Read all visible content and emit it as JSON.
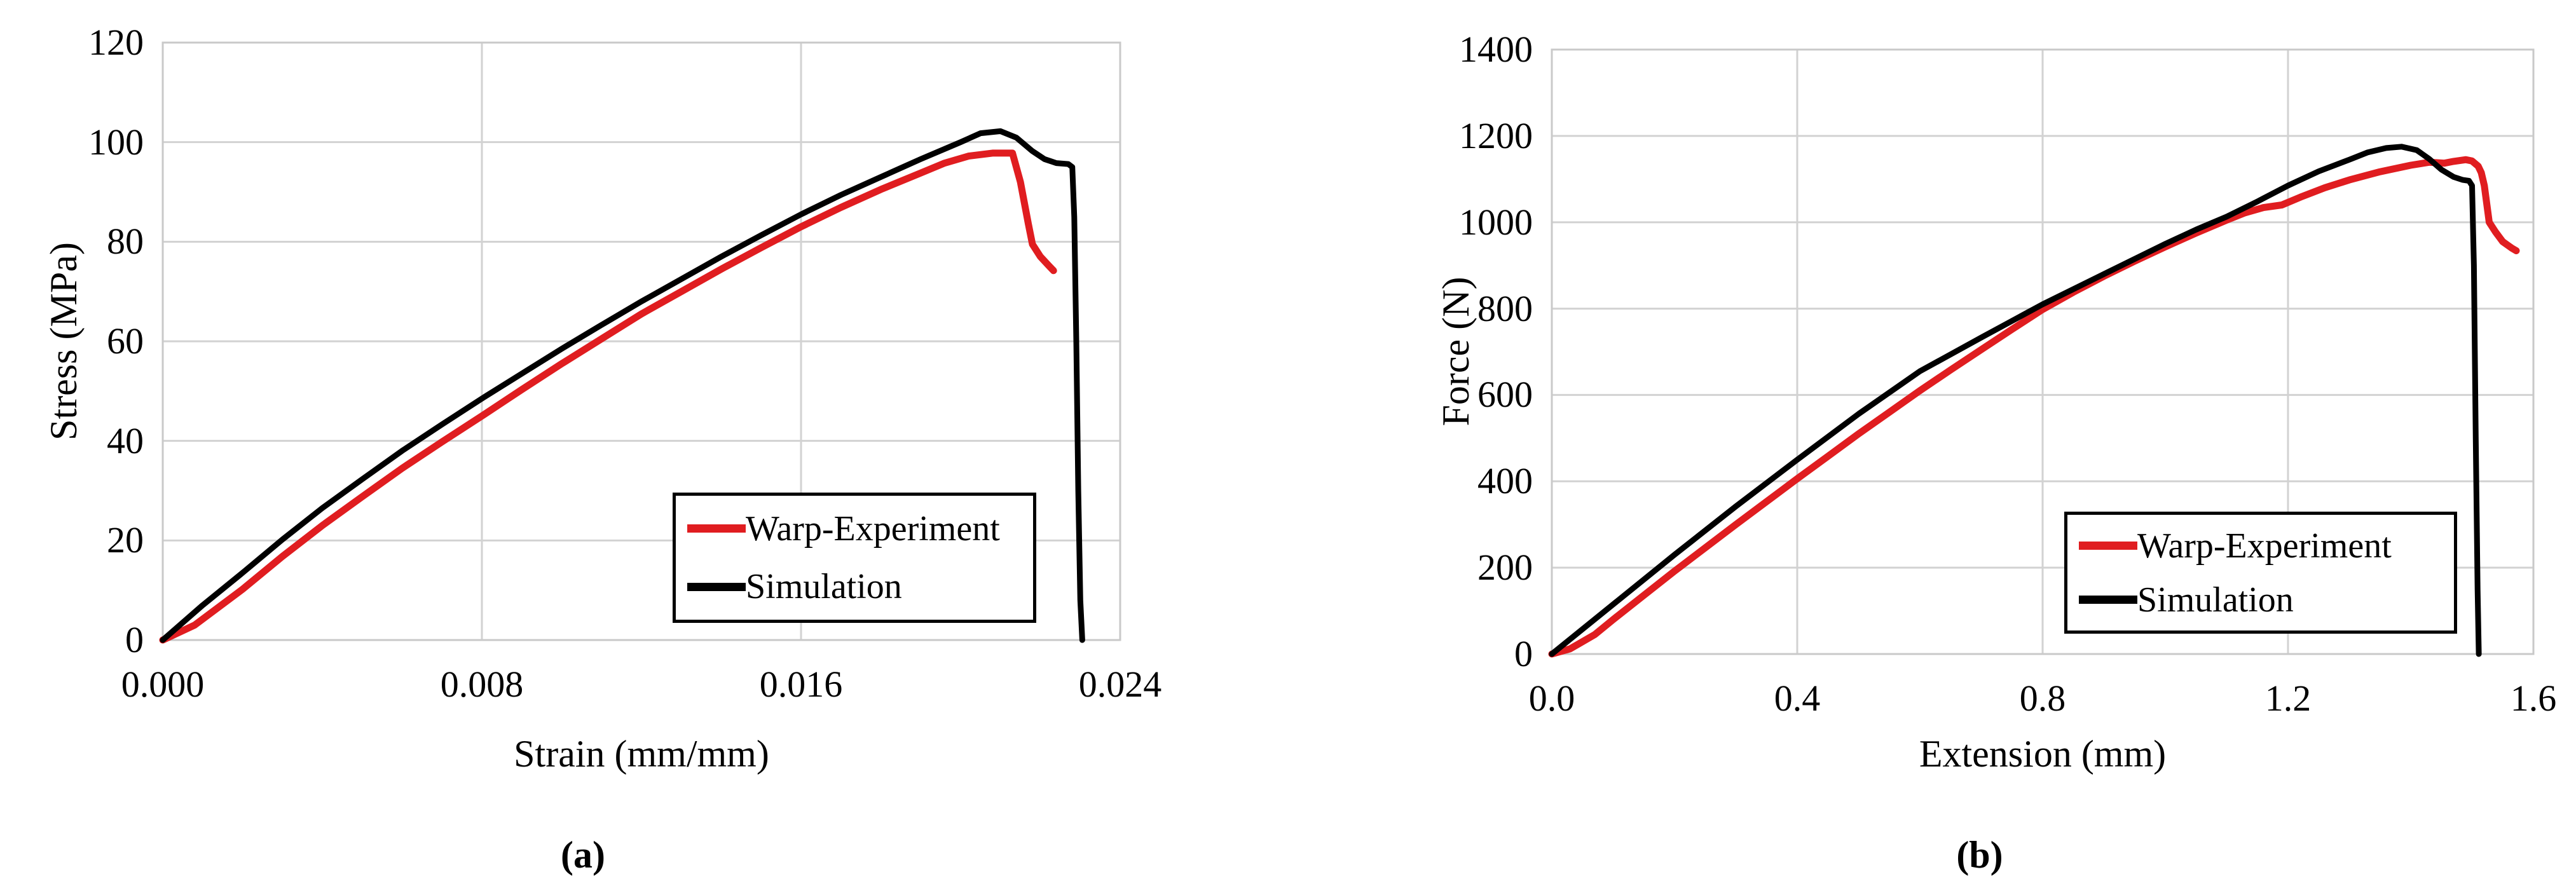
{
  "figure": {
    "background": "#ffffff",
    "text_color": "#000000"
  },
  "colors": {
    "experiment": "#e01d20",
    "simulation": "#000000",
    "grid": "#d2d2d2",
    "plot_border": "#c9c9c9",
    "legend_border": "#000000",
    "legend_background": "#ffffff"
  },
  "chart_data": [
    {
      "type": "line",
      "caption": "(a)",
      "xlabel": "Strain (mm/mm)",
      "ylabel": "Stress (MPa)",
      "xlim": [
        0,
        0.024
      ],
      "ylim": [
        0,
        120
      ],
      "grid": true,
      "legend_position": "inside-lower-right",
      "x_ticks": [
        {
          "v": 0,
          "label": "0.000"
        },
        {
          "v": 0.008,
          "label": "0.008"
        },
        {
          "v": 0.016,
          "label": "0.016"
        },
        {
          "v": 0.024,
          "label": "0.024"
        }
      ],
      "y_ticks": [
        {
          "v": 0,
          "label": "0"
        },
        {
          "v": 20,
          "label": "20"
        },
        {
          "v": 40,
          "label": "40"
        },
        {
          "v": 60,
          "label": "60"
        },
        {
          "v": 80,
          "label": "80"
        },
        {
          "v": 100,
          "label": "100"
        },
        {
          "v": 120,
          "label": "120"
        }
      ],
      "series": [
        {
          "name": "Warp-Experiment",
          "color_key": "experiment",
          "stroke_width": 11,
          "points": [
            [
              0,
              0
            ],
            [
              0.0008,
              3
            ],
            [
              0.002,
              10.2
            ],
            [
              0.003,
              16.8
            ],
            [
              0.004,
              23
            ],
            [
              0.005,
              28.8
            ],
            [
              0.006,
              34.5
            ],
            [
              0.007,
              39.8
            ],
            [
              0.008,
              45
            ],
            [
              0.009,
              50.3
            ],
            [
              0.01,
              55.5
            ],
            [
              0.011,
              60.5
            ],
            [
              0.012,
              65.5
            ],
            [
              0.013,
              70
            ],
            [
              0.014,
              74.5
            ],
            [
              0.015,
              78.8
            ],
            [
              0.016,
              83
            ],
            [
              0.017,
              86.9
            ],
            [
              0.018,
              90.5
            ],
            [
              0.019,
              93.8
            ],
            [
              0.0196,
              95.8
            ],
            [
              0.0202,
              97.2
            ],
            [
              0.0208,
              97.8
            ],
            [
              0.0213,
              97.8
            ],
            [
              0.0215,
              92
            ],
            [
              0.0217,
              83.5
            ],
            [
              0.0218,
              79.5
            ],
            [
              0.022,
              77
            ],
            [
              0.0222,
              75.3
            ],
            [
              0.02233,
              74.2
            ]
          ]
        },
        {
          "name": "Simulation",
          "color_key": "simulation",
          "stroke_width": 9,
          "points": [
            [
              0,
              0
            ],
            [
              0.001,
              7
            ],
            [
              0.002,
              13.5
            ],
            [
              0.003,
              20.2
            ],
            [
              0.004,
              26.5
            ],
            [
              0.005,
              32.3
            ],
            [
              0.006,
              38
            ],
            [
              0.007,
              43.3
            ],
            [
              0.008,
              48.5
            ],
            [
              0.009,
              53.5
            ],
            [
              0.01,
              58.5
            ],
            [
              0.011,
              63.3
            ],
            [
              0.012,
              68
            ],
            [
              0.013,
              72.5
            ],
            [
              0.014,
              77
            ],
            [
              0.015,
              81.3
            ],
            [
              0.016,
              85.5
            ],
            [
              0.017,
              89.4
            ],
            [
              0.018,
              93
            ],
            [
              0.019,
              96.6
            ],
            [
              0.02,
              100
            ],
            [
              0.0205,
              101.8
            ],
            [
              0.021,
              102.2
            ],
            [
              0.0214,
              100.9
            ],
            [
              0.0218,
              98.2
            ],
            [
              0.0221,
              96.6
            ],
            [
              0.0224,
              95.8
            ],
            [
              0.0227,
              95.6
            ],
            [
              0.0228,
              95
            ],
            [
              0.02285,
              85
            ],
            [
              0.0229,
              60
            ],
            [
              0.02295,
              30
            ],
            [
              0.023,
              8
            ],
            [
              0.02305,
              0
            ]
          ]
        }
      ]
    },
    {
      "type": "line",
      "caption": "(b)",
      "xlabel": "Extension (mm)",
      "ylabel": "Force (N)",
      "xlim": [
        0,
        1.6
      ],
      "ylim": [
        0,
        1400
      ],
      "grid": true,
      "legend_position": "inside-lower-right",
      "x_ticks": [
        {
          "v": 0,
          "label": "0.0"
        },
        {
          "v": 0.4,
          "label": "0.4"
        },
        {
          "v": 0.8,
          "label": "0.8"
        },
        {
          "v": 1.2,
          "label": "1.2"
        },
        {
          "v": 1.6,
          "label": "1.6"
        }
      ],
      "y_ticks": [
        {
          "v": 0,
          "label": "0"
        },
        {
          "v": 200,
          "label": "200"
        },
        {
          "v": 400,
          "label": "400"
        },
        {
          "v": 600,
          "label": "600"
        },
        {
          "v": 800,
          "label": "800"
        },
        {
          "v": 1000,
          "label": "1000"
        },
        {
          "v": 1200,
          "label": "1200"
        },
        {
          "v": 1400,
          "label": "1400"
        }
      ],
      "series": [
        {
          "name": "Warp-Experiment",
          "color_key": "experiment",
          "stroke_width": 11,
          "points": [
            [
              0,
              0
            ],
            [
              0.03,
              12
            ],
            [
              0.07,
              45
            ],
            [
              0.1,
              80
            ],
            [
              0.15,
              136
            ],
            [
              0.2,
              192
            ],
            [
              0.25,
              246
            ],
            [
              0.3,
              300
            ],
            [
              0.35,
              353
            ],
            [
              0.4,
              406
            ],
            [
              0.45,
              458
            ],
            [
              0.5,
              510
            ],
            [
              0.55,
              560
            ],
            [
              0.6,
              610
            ],
            [
              0.65,
              658
            ],
            [
              0.7,
              705
            ],
            [
              0.75,
              752
            ],
            [
              0.8,
              798
            ],
            [
              0.85,
              838
            ],
            [
              0.9,
              875
            ],
            [
              0.95,
              910
            ],
            [
              1,
              943
            ],
            [
              1.05,
              975
            ],
            [
              1.1,
              1005
            ],
            [
              1.13,
              1022
            ],
            [
              1.16,
              1034
            ],
            [
              1.19,
              1040
            ],
            [
              1.22,
              1058
            ],
            [
              1.26,
              1080
            ],
            [
              1.3,
              1098
            ],
            [
              1.35,
              1117
            ],
            [
              1.4,
              1132
            ],
            [
              1.43,
              1139
            ],
            [
              1.455,
              1137
            ],
            [
              1.47,
              1141
            ],
            [
              1.49,
              1145
            ],
            [
              1.5,
              1142
            ],
            [
              1.51,
              1130
            ],
            [
              1.515,
              1115
            ],
            [
              1.52,
              1085
            ],
            [
              1.528,
              1000
            ],
            [
              1.538,
              978
            ],
            [
              1.55,
              955
            ],
            [
              1.565,
              940
            ],
            [
              1.572,
              934
            ]
          ]
        },
        {
          "name": "Simulation",
          "color_key": "simulation",
          "stroke_width": 9,
          "points": [
            [
              0,
              0
            ],
            [
              0.1,
              115
            ],
            [
              0.2,
              230
            ],
            [
              0.3,
              342
            ],
            [
              0.4,
              450
            ],
            [
              0.5,
              556
            ],
            [
              0.6,
              655
            ],
            [
              0.7,
              733
            ],
            [
              0.8,
              810
            ],
            [
              0.9,
              880
            ],
            [
              1,
              950
            ],
            [
              1.05,
              983
            ],
            [
              1.1,
              1013
            ],
            [
              1.15,
              1048
            ],
            [
              1.2,
              1085
            ],
            [
              1.25,
              1118
            ],
            [
              1.3,
              1145
            ],
            [
              1.33,
              1162
            ],
            [
              1.36,
              1172
            ],
            [
              1.385,
              1175
            ],
            [
              1.41,
              1167
            ],
            [
              1.43,
              1147
            ],
            [
              1.45,
              1122
            ],
            [
              1.47,
              1105
            ],
            [
              1.485,
              1098
            ],
            [
              1.495,
              1096
            ],
            [
              1.5,
              1085
            ],
            [
              1.503,
              900
            ],
            [
              1.506,
              500
            ],
            [
              1.509,
              150
            ],
            [
              1.511,
              0
            ]
          ]
        }
      ]
    }
  ]
}
